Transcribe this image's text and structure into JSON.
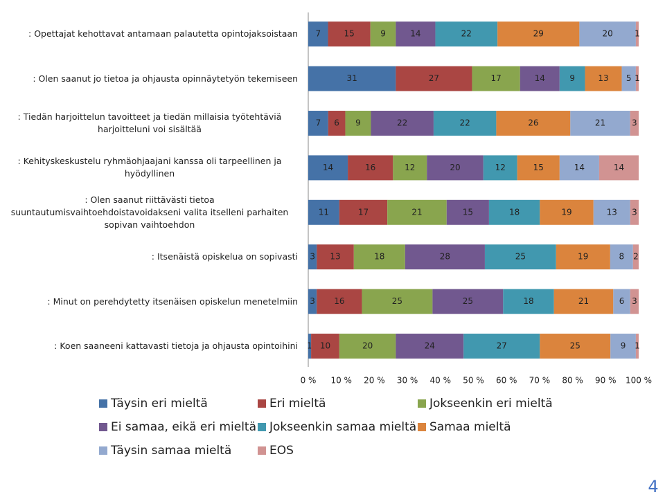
{
  "chart_data": {
    "type": "stacked-bar-percent",
    "categories": [
      ": Opettajat kehottavat antamaan palautetta opintojaksoistaan",
      ": Olen saanut jo tietoa ja ohjausta opinnäytetyön tekemiseen",
      ": Tiedän harjoittelun tavoitteet ja tiedän millaisia työtehtäviä harjoitteluni voi sisältää",
      ": Kehityskeskustelu ryhmäohjaajani kanssa oli tarpeellinen ja hyödyllinen",
      ": Olen saanut riittävästi tietoa suuntautumisvaihtoehdoistavoidakseni valita itselleni parhaiten sopivan vaihtoehdon",
      ": Itsenäistä opiskelua on sopivasti",
      ": Minut on perehdytetty itsenäisen opiskelun menetelmiin",
      ": Koen saaneeni kattavasti tietoja ja ohjausta opintoihini"
    ],
    "series": [
      {
        "name": "Täysin eri mieltä",
        "color": "#4572a7",
        "values": [
          7,
          31,
          7,
          14,
          11,
          3,
          3,
          1
        ]
      },
      {
        "name": "Eri mieltä",
        "color": "#aa4643",
        "values": [
          15,
          27,
          6,
          16,
          17,
          13,
          16,
          10
        ]
      },
      {
        "name": "Jokseenkin eri mieltä",
        "color": "#89a54e",
        "values": [
          9,
          17,
          9,
          12,
          21,
          18,
          25,
          20
        ]
      },
      {
        "name": "Ei samaa, eikä eri mieltä",
        "color": "#71588f",
        "values": [
          14,
          14,
          22,
          20,
          15,
          28,
          25,
          24
        ]
      },
      {
        "name": "Jokseenkin samaa mieltä",
        "color": "#4198af",
        "values": [
          22,
          9,
          22,
          12,
          18,
          25,
          18,
          27
        ]
      },
      {
        "name": "Samaa mieltä",
        "color": "#db843d",
        "values": [
          29,
          13,
          26,
          15,
          19,
          19,
          21,
          25
        ]
      },
      {
        "name": "Täysin samaa mieltä",
        "color": "#93a9cf",
        "values": [
          20,
          5,
          21,
          14,
          13,
          8,
          6,
          9
        ]
      },
      {
        "name": "EOS",
        "color": "#d19392",
        "values": [
          1,
          1,
          3,
          14,
          3,
          2,
          3,
          1
        ]
      }
    ],
    "xlim": [
      0,
      100
    ],
    "xticks": [
      {
        "value": 0,
        "label": "0 %"
      },
      {
        "value": 10,
        "label": "10 %"
      },
      {
        "value": 20,
        "label": "20 %"
      },
      {
        "value": 30,
        "label": "30 %"
      },
      {
        "value": 40,
        "label": "40 %"
      },
      {
        "value": 50,
        "label": "50 %"
      },
      {
        "value": 60,
        "label": "60 %"
      },
      {
        "value": 70,
        "label": "70 %"
      },
      {
        "value": 80,
        "label": "80 %"
      },
      {
        "value": 90,
        "label": "90 %"
      },
      {
        "value": 100,
        "label": "100 %"
      }
    ],
    "page_number": "4"
  }
}
